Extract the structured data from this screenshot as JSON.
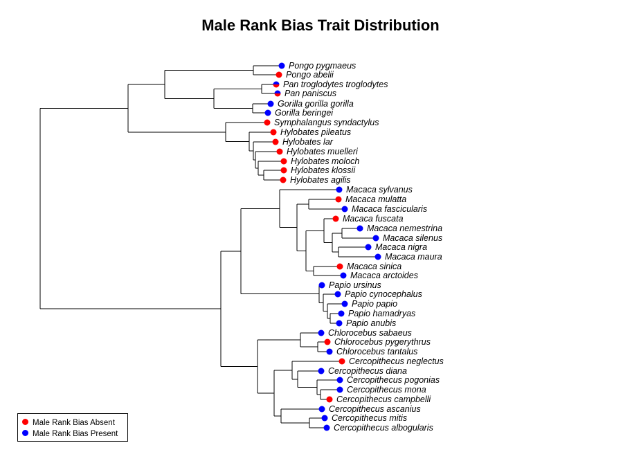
{
  "title": "Male Rank Bias Trait Distribution",
  "colors": {
    "absent": "#ff0000",
    "present": "#0000ff",
    "branch": "#000000"
  },
  "legend": [
    {
      "label": "Male Rank Bias Absent",
      "state": "absent"
    },
    {
      "label": "Male Rank Bias Present",
      "state": "present"
    }
  ],
  "taxa": [
    {
      "name": "Pongo pygmaeus",
      "state": "present"
    },
    {
      "name": "Pongo abelii",
      "state": "absent"
    },
    {
      "name": "Pan troglodytes troglodytes",
      "state": "mixed"
    },
    {
      "name": "Pan paniscus",
      "state": "mixed"
    },
    {
      "name": "Gorilla gorilla gorilla",
      "state": "present"
    },
    {
      "name": "Gorilla beringei",
      "state": "present"
    },
    {
      "name": "Symphalangus syndactylus",
      "state": "absent"
    },
    {
      "name": "Hylobates pileatus",
      "state": "absent"
    },
    {
      "name": "Hylobates lar",
      "state": "absent"
    },
    {
      "name": "Hylobates muelleri",
      "state": "absent"
    },
    {
      "name": "Hylobates moloch",
      "state": "absent"
    },
    {
      "name": "Hylobates klossii",
      "state": "absent"
    },
    {
      "name": "Hylobates agilis",
      "state": "absent"
    },
    {
      "name": "Macaca sylvanus",
      "state": "present"
    },
    {
      "name": "Macaca mulatta",
      "state": "absent"
    },
    {
      "name": "Macaca fascicularis",
      "state": "present"
    },
    {
      "name": "Macaca fuscata",
      "state": "absent"
    },
    {
      "name": "Macaca nemestrina",
      "state": "present"
    },
    {
      "name": "Macaca silenus",
      "state": "present"
    },
    {
      "name": "Macaca nigra",
      "state": "present"
    },
    {
      "name": "Macaca maura",
      "state": "present"
    },
    {
      "name": "Macaca sinica",
      "state": "absent"
    },
    {
      "name": "Macaca arctoides",
      "state": "present"
    },
    {
      "name": "Papio ursinus",
      "state": "present"
    },
    {
      "name": "Papio cynocephalus",
      "state": "present"
    },
    {
      "name": "Papio papio",
      "state": "present"
    },
    {
      "name": "Papio hamadryas",
      "state": "present"
    },
    {
      "name": "Papio anubis",
      "state": "present"
    },
    {
      "name": "Chlorocebus sabaeus",
      "state": "present"
    },
    {
      "name": "Chlorocebus pygerythrus",
      "state": "absent"
    },
    {
      "name": "Chlorocebus tantalus",
      "state": "present"
    },
    {
      "name": "Cercopithecus neglectus",
      "state": "absent"
    },
    {
      "name": "Cercopithecus diana",
      "state": "present"
    },
    {
      "name": "Cercopithecus pogonias",
      "state": "present"
    },
    {
      "name": "Cercopithecus mona",
      "state": "present"
    },
    {
      "name": "Cercopithecus campbelli",
      "state": "absent"
    },
    {
      "name": "Cercopithecus ascanius",
      "state": "present"
    },
    {
      "name": "Cercopithecus mitis",
      "state": "present"
    },
    {
      "name": "Cercopithecus albogularis",
      "state": "present"
    }
  ]
}
